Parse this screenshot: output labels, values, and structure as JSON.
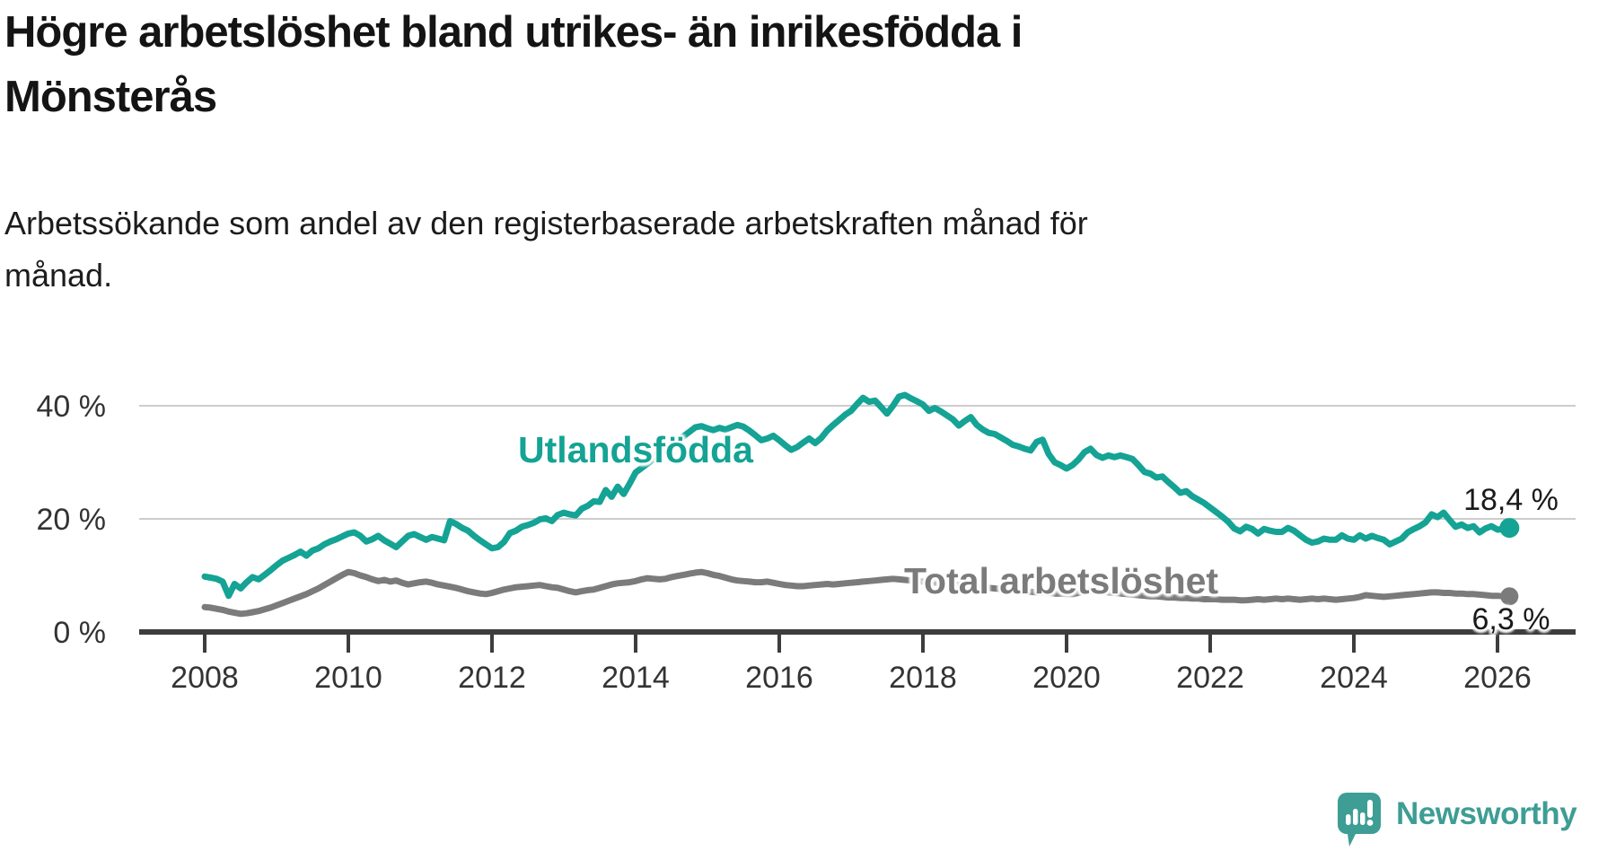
{
  "header": {
    "title": "Högre arbetslöshet bland utrikes- än inrikesfödda i\nMönsterås",
    "subtitle": "Arbetssökande som andel av den registerbaserade arbetskraften månad för\nmånad."
  },
  "style": {
    "teal": "#14A394",
    "gray": "#7B7B7B",
    "axis_color": "#3D3D3D",
    "axis_text_color": "#333333",
    "grid_color": "#CCCCCC",
    "end_label_color": "#1A1A1A",
    "logo_color": "#3E9D94"
  },
  "chart_data": {
    "type": "line",
    "title": "Högre arbetslöshet bland utrikes- än inrikesfödda i Mönsterås",
    "subtitle": "Arbetssökande som andel av den registerbaserade arbetskraften månad för månad.",
    "unit": "%",
    "frequency": "monthly",
    "x_start_year": 2008,
    "x_end": "2026-03",
    "points_per_year": 12,
    "grid": "horizontal-only",
    "x_ticks": [
      2008,
      2010,
      2012,
      2014,
      2016,
      2018,
      2020,
      2022,
      2024,
      2026
    ],
    "y_ticks": [
      {
        "label": "0 %",
        "value": 0
      },
      {
        "label": "20 %",
        "value": 20
      },
      {
        "label": "40 %",
        "value": 40
      }
    ],
    "ylim": [
      0,
      44
    ],
    "series": [
      {
        "name": "Utlandsfödda",
        "slug": "utlandsfodda",
        "color": "#14A394",
        "end_label": "18,4 %",
        "end_value": 18.4,
        "values": [
          9.8,
          9.6,
          9.4,
          8.9,
          6.4,
          8.5,
          7.7,
          8.8,
          9.7,
          9.3,
          10.1,
          10.9,
          11.8,
          12.6,
          13.1,
          13.6,
          14.2,
          13.5,
          14.4,
          14.8,
          15.5,
          16.0,
          16.4,
          16.9,
          17.4,
          17.6,
          17.0,
          16.0,
          16.4,
          17.0,
          16.2,
          15.6,
          15.0,
          16.0,
          17.0,
          17.3,
          16.8,
          16.3,
          16.8,
          16.5,
          16.2,
          19.6,
          19.1,
          18.4,
          17.9,
          17.0,
          16.2,
          15.5,
          14.8,
          15.0,
          15.9,
          17.5,
          17.9,
          18.6,
          18.9,
          19.3,
          19.9,
          20.1,
          19.6,
          20.7,
          21.1,
          20.8,
          20.6,
          21.8,
          22.3,
          23.1,
          23.0,
          25.1,
          23.9,
          25.7,
          24.4,
          26.2,
          28.2,
          29.0,
          29.8,
          30.6,
          31.4,
          32.2,
          33.0,
          33.8,
          34.6,
          35.4,
          36.2,
          36.4,
          36.0,
          35.7,
          36.1,
          35.8,
          36.2,
          36.6,
          36.3,
          35.6,
          34.8,
          33.9,
          34.2,
          34.7,
          33.9,
          33.0,
          32.2,
          32.7,
          33.5,
          34.2,
          33.4,
          34.3,
          35.6,
          36.6,
          37.5,
          38.4,
          39.1,
          40.3,
          41.4,
          40.7,
          40.9,
          39.8,
          38.6,
          40.0,
          41.6,
          41.9,
          41.3,
          40.8,
          40.2,
          39.1,
          39.6,
          39.0,
          38.3,
          37.6,
          36.5,
          37.3,
          38.0,
          36.6,
          35.8,
          35.2,
          35.0,
          34.4,
          33.8,
          33.1,
          32.8,
          32.4,
          32.1,
          33.6,
          34.0,
          31.5,
          30.0,
          29.5,
          28.9,
          29.5,
          30.5,
          31.8,
          32.4,
          31.3,
          30.8,
          31.2,
          30.9,
          31.2,
          30.9,
          30.6,
          29.5,
          28.3,
          28.0,
          27.3,
          27.5,
          26.5,
          25.6,
          24.6,
          24.9,
          24.0,
          23.4,
          22.8,
          22.0,
          21.2,
          20.4,
          19.5,
          18.3,
          17.8,
          18.6,
          18.2,
          17.4,
          18.2,
          17.9,
          17.7,
          17.7,
          18.4,
          17.9,
          17.1,
          16.3,
          15.8,
          16.0,
          16.5,
          16.3,
          16.3,
          17.1,
          16.5,
          16.3,
          17.1,
          16.5,
          17.0,
          16.6,
          16.3,
          15.5,
          16.0,
          16.5,
          17.6,
          18.2,
          18.7,
          19.4,
          20.8,
          20.3,
          21.1,
          19.8,
          18.6,
          19.0,
          18.4,
          18.7,
          17.6,
          18.3,
          18.7,
          18.1,
          18.2,
          18.4
        ]
      },
      {
        "name": "Total arbetslöshet",
        "slug": "total-arbetsloshet",
        "color": "#7B7B7B",
        "end_label": "6,3 %",
        "end_value": 6.3,
        "values": [
          4.4,
          4.3,
          4.1,
          3.9,
          3.6,
          3.4,
          3.2,
          3.3,
          3.5,
          3.7,
          4.0,
          4.3,
          4.7,
          5.1,
          5.5,
          5.9,
          6.3,
          6.7,
          7.2,
          7.7,
          8.3,
          8.9,
          9.5,
          10.1,
          10.6,
          10.4,
          10.0,
          9.7,
          9.3,
          9.0,
          9.2,
          8.9,
          9.1,
          8.7,
          8.4,
          8.6,
          8.8,
          8.9,
          8.7,
          8.4,
          8.2,
          8.0,
          7.8,
          7.5,
          7.2,
          7.0,
          6.8,
          6.7,
          6.9,
          7.2,
          7.5,
          7.7,
          7.9,
          8.0,
          8.1,
          8.2,
          8.3,
          8.1,
          7.9,
          7.8,
          7.5,
          7.2,
          7.0,
          7.2,
          7.4,
          7.5,
          7.8,
          8.1,
          8.4,
          8.6,
          8.7,
          8.8,
          9.0,
          9.3,
          9.5,
          9.4,
          9.3,
          9.4,
          9.7,
          9.9,
          10.1,
          10.3,
          10.5,
          10.6,
          10.4,
          10.1,
          9.9,
          9.6,
          9.3,
          9.1,
          9.0,
          8.9,
          8.8,
          8.8,
          8.9,
          8.7,
          8.5,
          8.3,
          8.2,
          8.1,
          8.1,
          8.2,
          8.3,
          8.4,
          8.5,
          8.4,
          8.5,
          8.6,
          8.7,
          8.8,
          8.9,
          9.0,
          9.1,
          9.2,
          9.3,
          9.4,
          9.3,
          9.2,
          9.1,
          9.0,
          8.9,
          8.8,
          8.7,
          8.6,
          8.5,
          8.4,
          8.3,
          8.2,
          8.1,
          8.0,
          7.9,
          7.8,
          7.7,
          7.6,
          7.5,
          7.4,
          7.3,
          7.2,
          7.1,
          7.0,
          7.0,
          6.9,
          6.8,
          6.8,
          6.7,
          6.7,
          6.9,
          7.1,
          7.3,
          7.2,
          7.1,
          7.0,
          6.9,
          6.8,
          6.7,
          6.6,
          6.5,
          6.4,
          6.3,
          6.3,
          6.2,
          6.1,
          6.1,
          6.0,
          6.0,
          5.9,
          5.9,
          5.8,
          5.8,
          5.8,
          5.7,
          5.7,
          5.7,
          5.6,
          5.6,
          5.7,
          5.8,
          5.7,
          5.8,
          5.9,
          5.8,
          5.9,
          5.8,
          5.7,
          5.8,
          5.9,
          5.8,
          5.9,
          5.8,
          5.7,
          5.8,
          5.9,
          6.0,
          6.2,
          6.5,
          6.4,
          6.3,
          6.2,
          6.3,
          6.4,
          6.5,
          6.6,
          6.7,
          6.8,
          6.9,
          7.0,
          7.0,
          6.9,
          6.9,
          6.8,
          6.8,
          6.7,
          6.7,
          6.6,
          6.5,
          6.4,
          6.4,
          6.3,
          6.3
        ]
      }
    ]
  },
  "footer": {
    "brand": "Newsworthy"
  }
}
